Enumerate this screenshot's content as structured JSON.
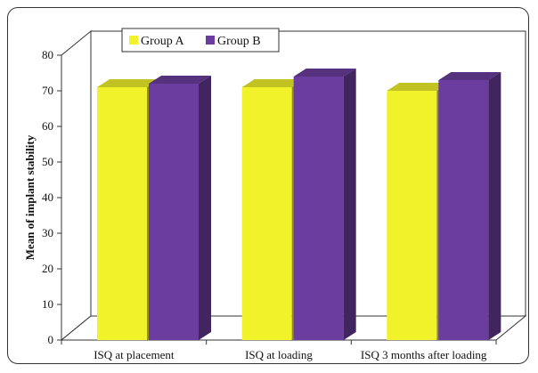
{
  "chart_data": {
    "type": "bar",
    "title": "",
    "xlabel": "",
    "ylabel": "Mean of implant stability",
    "ylim": [
      0,
      80
    ],
    "yticks": [
      0,
      10,
      20,
      30,
      40,
      50,
      60,
      70,
      80
    ],
    "categories": [
      "ISQ at placement",
      "ISQ at loading",
      "ISQ 3 months after loading"
    ],
    "series": [
      {
        "name": "Group A",
        "values": [
          71,
          71,
          70
        ],
        "color": "#f2f22a"
      },
      {
        "name": "Group B",
        "values": [
          72,
          74,
          73
        ],
        "color": "#6a3d9e"
      }
    ],
    "legend": "top-left",
    "style": "3d"
  }
}
